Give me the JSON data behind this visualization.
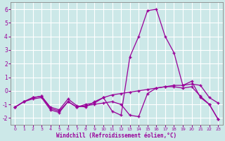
{
  "xlabel": "Windchill (Refroidissement éolien,°C)",
  "x": [
    0,
    1,
    2,
    3,
    4,
    5,
    6,
    7,
    8,
    9,
    10,
    11,
    12,
    13,
    14,
    15,
    16,
    17,
    18,
    19,
    20,
    21,
    22,
    23
  ],
  "line1": [
    -1.2,
    -0.8,
    -0.6,
    -0.5,
    -1.4,
    -1.6,
    -0.8,
    -1.2,
    -1.0,
    -0.9,
    -0.5,
    -0.3,
    -0.2,
    -0.1,
    0.0,
    0.1,
    0.2,
    0.3,
    0.4,
    0.4,
    0.5,
    0.4,
    -0.5,
    -0.9
  ],
  "line2": [
    -1.2,
    -0.8,
    -0.5,
    -0.4,
    -1.2,
    -1.4,
    -0.6,
    -1.1,
    -1.2,
    -0.8,
    -0.5,
    -1.5,
    -1.8,
    2.5,
    4.0,
    5.9,
    6.0,
    4.0,
    2.8,
    0.4,
    0.7,
    -0.5,
    -1.0,
    -2.1
  ],
  "line3": [
    -1.2,
    -0.8,
    -0.5,
    -0.4,
    -1.3,
    -1.5,
    -0.8,
    -1.2,
    -1.1,
    -1.0,
    -0.9,
    -0.8,
    -1.0,
    -1.8,
    -1.9,
    -0.2,
    0.2,
    0.3,
    0.3,
    0.2,
    0.3,
    -0.4,
    -1.0,
    -2.1
  ],
  "line_color": "#990099",
  "bg_color": "#cce8e8",
  "grid_color": "#ffffff",
  "ylim": [
    -2.5,
    6.5
  ],
  "yticks": [
    -2,
    -1,
    0,
    1,
    2,
    3,
    4,
    5,
    6
  ],
  "xlim": [
    -0.5,
    23.5
  ],
  "xticks": [
    0,
    1,
    2,
    3,
    4,
    5,
    6,
    7,
    8,
    9,
    10,
    11,
    12,
    13,
    14,
    15,
    16,
    17,
    18,
    19,
    20,
    21,
    22,
    23
  ]
}
